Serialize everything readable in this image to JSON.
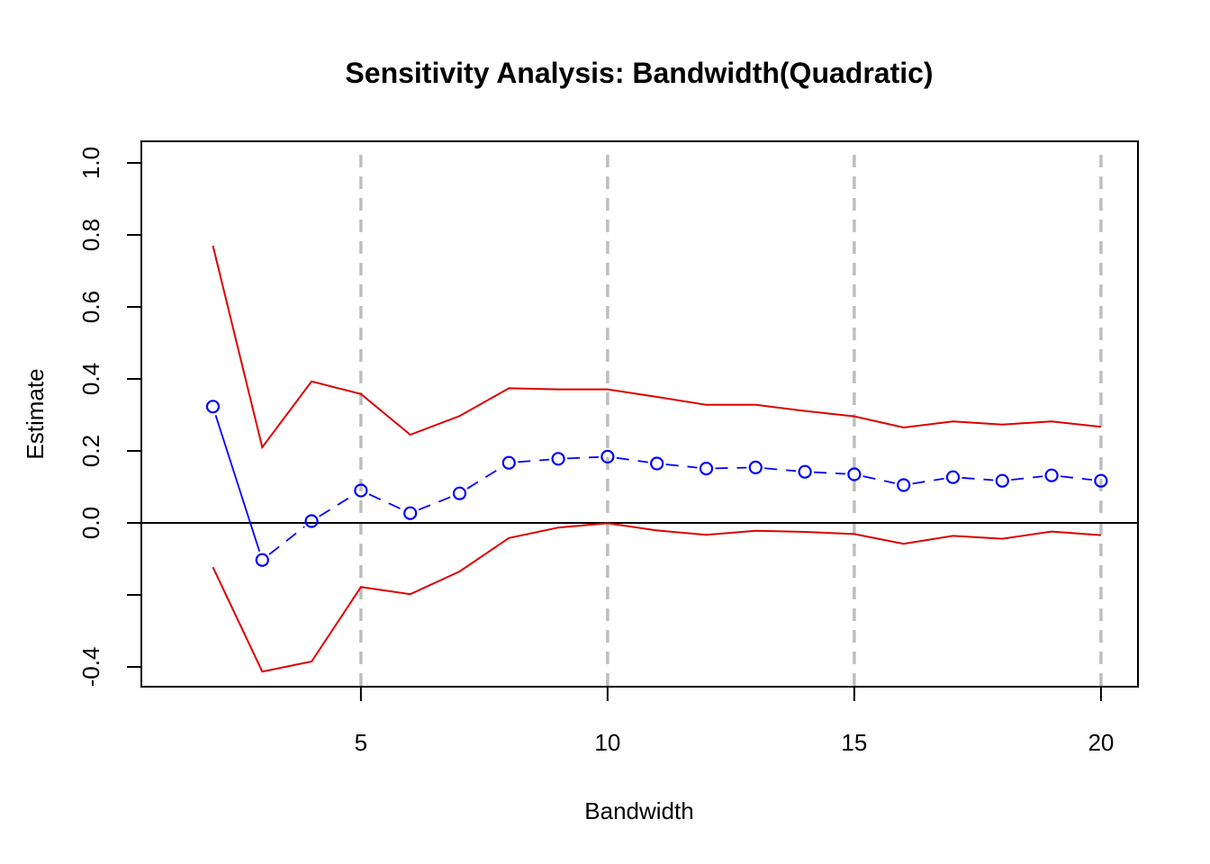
{
  "chart_data": {
    "type": "line",
    "title": "Sensitivity Analysis: Bandwidth(Quadratic)",
    "xlabel": "Bandwidth",
    "ylabel": "Estimate",
    "xlim": [
      0.55,
      20.75
    ],
    "ylim": [
      -0.455,
      1.06
    ],
    "xticks": [
      5,
      10,
      15,
      20
    ],
    "yticks": [
      -0.4,
      -0.2,
      0.0,
      0.2,
      0.4,
      0.6,
      0.8,
      1.0
    ],
    "ytick_labels": [
      "-0.4",
      "",
      "0.0",
      "0.2",
      "0.4",
      "0.6",
      "0.8",
      "1.0"
    ],
    "vlines": [
      5,
      10,
      15,
      20
    ],
    "hline": 0,
    "x": [
      2,
      3,
      4,
      5,
      6,
      7,
      8,
      9,
      10,
      11,
      12,
      13,
      14,
      15,
      16,
      17,
      18,
      19,
      20
    ],
    "series": [
      {
        "role": "estimate",
        "color": "#0000ff",
        "values": [
          0.323,
          -0.103,
          0.005,
          0.09,
          0.027,
          0.082,
          0.167,
          0.178,
          0.184,
          0.165,
          0.151,
          0.154,
          0.142,
          0.135,
          0.105,
          0.127,
          0.117,
          0.132,
          0.117
        ]
      },
      {
        "role": "upper-ci",
        "color": "#dd0000",
        "values": [
          0.77,
          0.21,
          0.393,
          0.358,
          0.245,
          0.297,
          0.374,
          0.371,
          0.371,
          0.35,
          0.328,
          0.328,
          0.311,
          0.296,
          0.265,
          0.282,
          0.273,
          0.282,
          0.267
        ]
      },
      {
        "role": "lower-ci",
        "color": "#dd0000",
        "values": [
          -0.123,
          -0.413,
          -0.385,
          -0.178,
          -0.198,
          -0.135,
          -0.042,
          -0.013,
          -0.001,
          -0.021,
          -0.033,
          -0.022,
          -0.025,
          -0.031,
          -0.058,
          -0.036,
          -0.044,
          -0.024,
          -0.034
        ]
      }
    ]
  }
}
